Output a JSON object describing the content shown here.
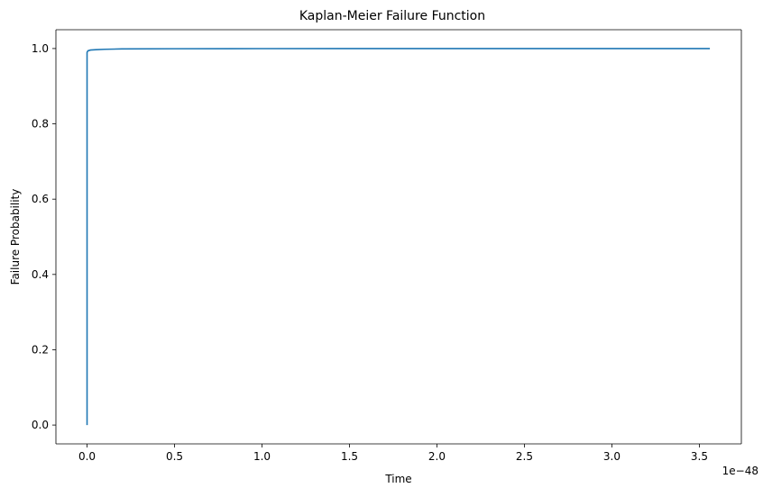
{
  "chart_data": {
    "type": "line",
    "title": "Kaplan-Meier Failure Function",
    "xlabel": "Time",
    "ylabel": "Failure Probability",
    "x_offset_label": "1e−48",
    "x_scale": 1e-48,
    "xlim": [
      -0.178,
      3.74
    ],
    "ylim": [
      -0.05,
      1.05
    ],
    "x_ticks": [
      0.0,
      0.5,
      1.0,
      1.5,
      2.0,
      2.5,
      3.0,
      3.5
    ],
    "x_tick_labels": [
      "0.0",
      "0.5",
      "1.0",
      "1.5",
      "2.0",
      "2.5",
      "3.0",
      "3.5"
    ],
    "y_ticks": [
      0.0,
      0.2,
      0.4,
      0.6,
      0.8,
      1.0
    ],
    "y_tick_labels": [
      "0.0",
      "0.2",
      "0.4",
      "0.6",
      "0.8",
      "1.0"
    ],
    "grid": false,
    "series": [
      {
        "color": "#1f77b4",
        "x": [
          0.0,
          0.0,
          0.005,
          0.02,
          0.05,
          0.1,
          0.2,
          0.5,
          1.0,
          2.0,
          3.0,
          3.56
        ],
        "y": [
          0.0,
          0.99,
          0.994,
          0.996,
          0.997,
          0.998,
          0.999,
          0.9995,
          0.9998,
          0.9999,
          1.0,
          1.0
        ]
      }
    ]
  }
}
